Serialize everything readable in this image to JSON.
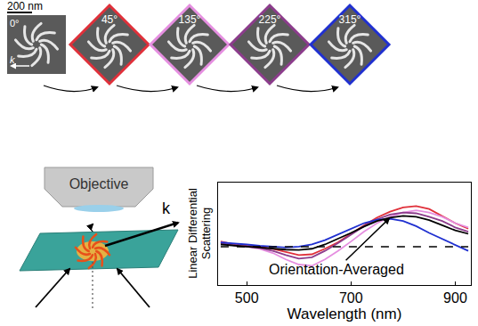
{
  "chart_data": {
    "type": "line",
    "x": [
      450,
      475,
      500,
      525,
      550,
      575,
      600,
      625,
      650,
      675,
      700,
      725,
      750,
      775,
      800,
      825,
      850,
      875,
      900,
      925
    ],
    "series": [
      {
        "color": "#e0303a",
        "line_style": "solid",
        "values": [
          0.12,
          0.05,
          0.02,
          0.0,
          -0.05,
          -0.12,
          -0.2,
          -0.18,
          -0.05,
          0.1,
          0.3,
          0.5,
          0.68,
          0.82,
          0.92,
          0.95,
          0.88,
          0.72,
          0.55,
          0.42
        ]
      },
      {
        "color": "#e58ee0",
        "line_style": "solid",
        "values": [
          0.1,
          0.03,
          0.0,
          -0.05,
          -0.15,
          -0.3,
          -0.42,
          -0.45,
          -0.3,
          -0.1,
          0.12,
          0.35,
          0.55,
          0.7,
          0.8,
          0.85,
          0.8,
          0.7,
          0.55,
          0.45
        ]
      },
      {
        "color": "#8c3c8c",
        "line_style": "solid",
        "values": [
          0.08,
          0.03,
          0.0,
          -0.03,
          -0.1,
          -0.2,
          -0.28,
          -0.25,
          -0.1,
          0.08,
          0.28,
          0.48,
          0.64,
          0.75,
          0.8,
          0.78,
          0.7,
          0.6,
          0.45,
          0.35
        ]
      },
      {
        "color": "#2030d0",
        "line_style": "solid",
        "values": [
          0.1,
          0.08,
          0.05,
          0.02,
          0.0,
          -0.02,
          0.0,
          0.05,
          0.15,
          0.28,
          0.42,
          0.55,
          0.63,
          0.65,
          0.6,
          0.48,
          0.32,
          0.18,
          0.05,
          -0.1
        ]
      },
      {
        "color": "#000000",
        "line_style": "solid",
        "values": [
          0.05,
          0.02,
          0.0,
          -0.02,
          -0.05,
          -0.07,
          -0.08,
          -0.05,
          0.05,
          0.18,
          0.32,
          0.47,
          0.6,
          0.68,
          0.72,
          0.7,
          0.62,
          0.5,
          0.38,
          0.3
        ]
      },
      {
        "color": "#000000",
        "line_style": "dashed",
        "values": [
          0,
          0,
          0,
          0,
          0,
          0,
          0,
          0,
          0,
          0,
          0,
          0,
          0,
          0,
          0,
          0,
          0,
          0,
          0,
          0
        ]
      }
    ],
    "x_label": "Wavelength (nm)",
    "y_label": "Linear Differential Scattering",
    "xlim": [
      445,
      930
    ],
    "xticks": [
      500,
      700,
      900
    ],
    "ylim": [
      -0.9,
      1.5
    ],
    "tick_labels": "x",
    "annotations": [
      {
        "text": "Orientation-Averaged",
        "x": 775,
        "y": 0.68
      }
    ]
  },
  "figure": {
    "scale_bar": "200 nm",
    "wave_vector": "k",
    "objective": "Objective",
    "sem_images": [
      {
        "angle": "0°"
      },
      {
        "angle": "45°",
        "color": "#e0303a"
      },
      {
        "angle": "135°",
        "color": "#e58ee0"
      },
      {
        "angle": "225°",
        "color": "#8c3c8c"
      },
      {
        "angle": "315°",
        "color": "#2030d0"
      }
    ]
  }
}
